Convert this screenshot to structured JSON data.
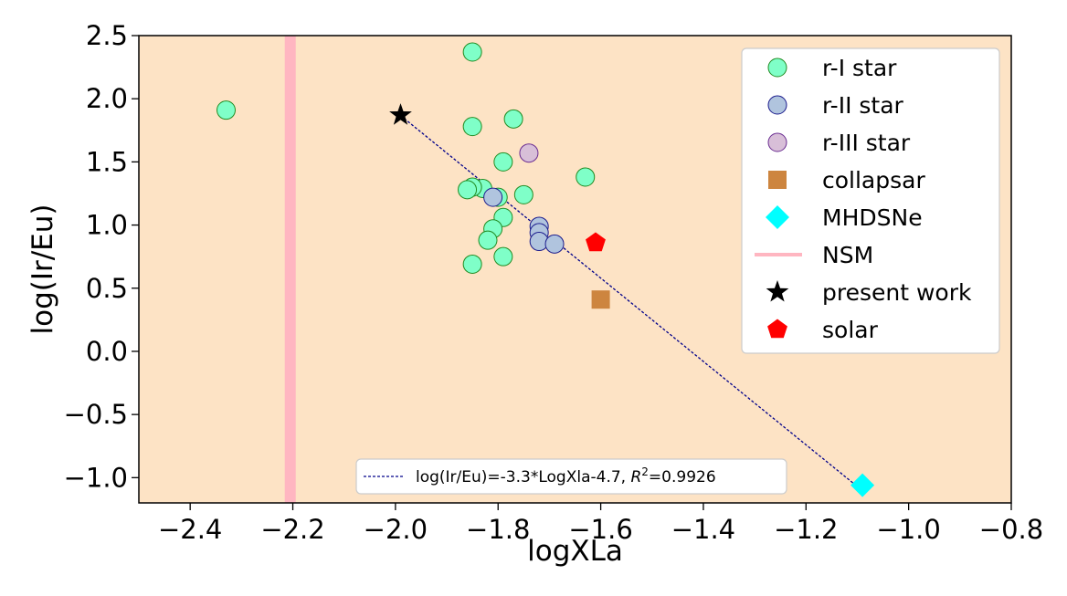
{
  "chart_data": {
    "type": "scatter",
    "xlabel": "logXLa",
    "ylabel": "log(Ir/Eu)",
    "xlim": [
      -2.5,
      -0.8
    ],
    "ylim": [
      -1.2,
      2.5
    ],
    "xticks": [
      -2.4,
      -2.2,
      -2.0,
      -1.8,
      -1.6,
      -1.4,
      -1.2,
      -1.0,
      -0.8
    ],
    "xtick_labels": [
      "−2.4",
      "−2.2",
      "−2.0",
      "−1.8",
      "−1.6",
      "−1.4",
      "−1.2",
      "−1.0",
      "−0.8"
    ],
    "yticks": [
      -1.0,
      -0.5,
      0.0,
      0.5,
      1.0,
      1.5,
      2.0,
      2.5
    ],
    "ytick_labels": [
      "−1.0",
      "−0.5",
      "0.0",
      "0.5",
      "1.0",
      "1.5",
      "2.0",
      "2.5"
    ],
    "background_color": "#fde3c5",
    "grid": false,
    "legend_placement": "upper right",
    "series": [
      {
        "name": "r-I star",
        "marker": "circle",
        "color": "#7fffc8",
        "edge": "#228b22",
        "points": [
          [
            -2.33,
            1.91
          ],
          [
            -1.85,
            2.37
          ],
          [
            -1.85,
            1.78
          ],
          [
            -1.77,
            1.84
          ],
          [
            -1.79,
            1.5
          ],
          [
            -1.63,
            1.38
          ],
          [
            -1.83,
            1.29
          ],
          [
            -1.85,
            1.3
          ],
          [
            -1.86,
            1.28
          ],
          [
            -1.8,
            1.22
          ],
          [
            -1.75,
            1.24
          ],
          [
            -1.79,
            1.06
          ],
          [
            -1.81,
            0.97
          ],
          [
            -1.82,
            0.88
          ],
          [
            -1.79,
            0.75
          ],
          [
            -1.85,
            0.69
          ]
        ]
      },
      {
        "name": "r-II star",
        "marker": "circle",
        "color": "#b0c4de",
        "edge": "#1a1a8c",
        "points": [
          [
            -1.81,
            1.22
          ],
          [
            -1.72,
            0.99
          ],
          [
            -1.72,
            0.94
          ],
          [
            -1.72,
            0.87
          ],
          [
            -1.69,
            0.85
          ]
        ]
      },
      {
        "name": "r-III star",
        "marker": "circle",
        "color": "#d8bfd8",
        "edge": "#6a2c91",
        "points": [
          [
            -1.74,
            1.57
          ]
        ]
      },
      {
        "name": "collapsar",
        "marker": "square",
        "color": "#cd853f",
        "points": [
          [
            -1.6,
            0.41
          ]
        ]
      },
      {
        "name": "MHDSNe",
        "marker": "diamond",
        "color": "#00ffff",
        "points": [
          [
            -1.09,
            -1.06
          ]
        ]
      },
      {
        "name": "present work",
        "marker": "star",
        "color": "#000000",
        "points": [
          [
            -1.99,
            1.87
          ]
        ]
      },
      {
        "name": "solar",
        "marker": "pentagon",
        "color": "#ff0000",
        "points": [
          [
            -1.61,
            0.86
          ]
        ]
      }
    ],
    "nsm": {
      "name": "NSM",
      "color": "#ffb6c1",
      "x": -2.205
    },
    "fit": {
      "label_prefix": "log(Ir/Eu)=-3.3*LogXla-4.7, ",
      "label_r": "R",
      "label_sup": "2",
      "label_suffix": "=0.9926",
      "slope": -3.3,
      "intercept": -4.7,
      "x_range": [
        -1.99,
        -1.09
      ],
      "color": "#00008b"
    }
  }
}
